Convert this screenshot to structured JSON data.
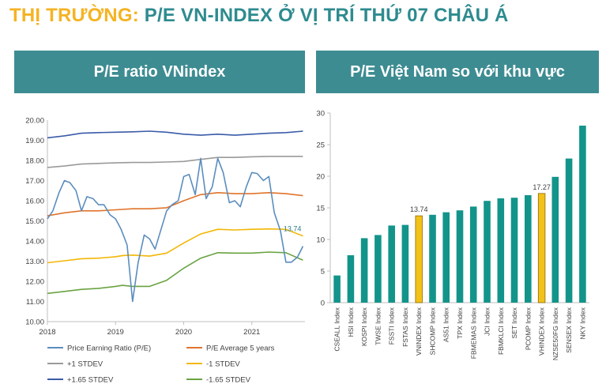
{
  "header": {
    "title_lead": "THỊ TRƯỜNG:",
    "title_rest": "P/E VN-INDEX Ở VỊ TRÍ THỨ 07 CHÂU Á"
  },
  "panels": {
    "left_title": "P/E ratio VNindex",
    "right_title": "P/E Việt Nam so với khu vực"
  },
  "chart_data": [
    {
      "type": "line",
      "title": "P/E ratio VNindex",
      "ylim": [
        10,
        20
      ],
      "xlim": [
        2018,
        2021.78
      ],
      "y_ticks": [
        "10.00",
        "11.00",
        "12.00",
        "13.00",
        "14.00",
        "15.00",
        "16.00",
        "17.00",
        "18.00",
        "19.00",
        "20.00"
      ],
      "x_ticks": [
        "2018",
        "2019",
        "2020",
        "2021"
      ],
      "grid": false,
      "legend": "bottom",
      "colors": {
        "pe": "#5B8DBE",
        "avg": "#E0742B",
        "plus1": "#9A9A9A",
        "minus1": "#F2B705",
        "plus165": "#3A5BA8",
        "minus165": "#6AA342"
      },
      "last_label": "13.74",
      "series": [
        {
          "name": "Price Earning Ratio (P/E)",
          "key": "pe",
          "x": [
            2018.0,
            2018.08,
            2018.17,
            2018.25,
            2018.33,
            2018.42,
            2018.5,
            2018.58,
            2018.67,
            2018.75,
            2018.83,
            2018.92,
            2019.0,
            2019.08,
            2019.17,
            2019.25,
            2019.33,
            2019.42,
            2019.5,
            2019.58,
            2019.67,
            2019.75,
            2019.83,
            2019.92,
            2020.0,
            2020.08,
            2020.17,
            2020.25,
            2020.33,
            2020.42,
            2020.5,
            2020.58,
            2020.67,
            2020.75,
            2020.83,
            2020.92,
            2021.0,
            2021.08,
            2021.17,
            2021.25,
            2021.33,
            2021.42,
            2021.5,
            2021.58,
            2021.67,
            2021.75
          ],
          "y": [
            15.1,
            15.5,
            16.4,
            17.0,
            16.9,
            16.5,
            15.5,
            16.2,
            16.1,
            15.8,
            15.8,
            15.3,
            15.1,
            14.6,
            13.8,
            11.0,
            12.9,
            14.3,
            14.1,
            13.6,
            14.6,
            15.5,
            15.8,
            16.0,
            17.2,
            17.3,
            16.3,
            18.1,
            16.1,
            16.7,
            18.1,
            17.4,
            15.9,
            16.0,
            15.7,
            16.7,
            17.4,
            17.35,
            17.0,
            17.2,
            15.4,
            14.5,
            12.95,
            12.95,
            13.2,
            13.74
          ]
        },
        {
          "name": "P/E Average 5 years",
          "key": "avg",
          "x": [
            2018.0,
            2018.25,
            2018.5,
            2018.75,
            2019.0,
            2019.25,
            2019.5,
            2019.75,
            2020.0,
            2020.25,
            2020.5,
            2020.75,
            2021.0,
            2021.25,
            2021.5,
            2021.75
          ],
          "y": [
            15.25,
            15.4,
            15.5,
            15.5,
            15.55,
            15.6,
            15.6,
            15.65,
            16.0,
            16.3,
            16.4,
            16.35,
            16.35,
            16.4,
            16.35,
            16.25
          ]
        },
        {
          "name": "+1 STDEV",
          "key": "plus1",
          "x": [
            2018.0,
            2018.25,
            2018.5,
            2018.75,
            2019.0,
            2019.25,
            2019.5,
            2019.75,
            2020.0,
            2020.25,
            2020.5,
            2020.75,
            2021.0,
            2021.25,
            2021.5,
            2021.75
          ],
          "y": [
            17.65,
            17.72,
            17.82,
            17.85,
            17.88,
            17.9,
            17.9,
            17.92,
            17.95,
            18.05,
            18.15,
            18.15,
            18.18,
            18.2,
            18.2,
            18.2
          ]
        },
        {
          "name": "-1 STDEV",
          "key": "minus1",
          "x": [
            2018.0,
            2018.25,
            2018.5,
            2018.75,
            2019.0,
            2019.1,
            2019.25,
            2019.5,
            2019.75,
            2020.0,
            2020.25,
            2020.5,
            2020.75,
            2021.0,
            2021.25,
            2021.5,
            2021.75
          ],
          "y": [
            12.92,
            13.02,
            13.12,
            13.15,
            13.22,
            13.28,
            13.3,
            13.25,
            13.4,
            13.9,
            14.35,
            14.58,
            14.55,
            14.58,
            14.6,
            14.58,
            14.25
          ]
        },
        {
          "name": "+1.65 STDEV",
          "key": "plus165",
          "x": [
            2018.0,
            2018.25,
            2018.5,
            2018.75,
            2019.0,
            2019.25,
            2019.5,
            2019.75,
            2020.0,
            2020.25,
            2020.5,
            2020.75,
            2021.0,
            2021.25,
            2021.5,
            2021.75
          ],
          "y": [
            19.12,
            19.22,
            19.35,
            19.38,
            19.4,
            19.42,
            19.45,
            19.4,
            19.3,
            19.25,
            19.3,
            19.25,
            19.3,
            19.35,
            19.38,
            19.45
          ]
        },
        {
          "name": "-1.65 STDEV",
          "key": "minus165",
          "x": [
            2018.0,
            2018.25,
            2018.5,
            2018.75,
            2019.0,
            2019.1,
            2019.25,
            2019.5,
            2019.75,
            2020.0,
            2020.25,
            2020.5,
            2020.75,
            2021.0,
            2021.25,
            2021.5,
            2021.75
          ],
          "y": [
            11.4,
            11.5,
            11.6,
            11.65,
            11.75,
            11.8,
            11.75,
            11.75,
            12.05,
            12.65,
            13.15,
            13.42,
            13.4,
            13.4,
            13.45,
            13.42,
            13.05
          ]
        }
      ]
    },
    {
      "type": "bar",
      "title": "P/E Việt Nam so với khu vực",
      "ylim": [
        0,
        30
      ],
      "y_ticks": [
        "0",
        "5",
        "10",
        "15",
        "20",
        "25",
        "30"
      ],
      "grid": false,
      "colors": {
        "bar": "#13948A",
        "highlight": "#F2C21B",
        "highlight_stroke": "#8C6B00"
      },
      "categories": [
        "CSEALL Index",
        "HSI Index",
        "KOSPI Index",
        "TWSE Index",
        "FSSTI Index",
        "FSTAS Index",
        "VNINDEX Index",
        "SHCOMP Index",
        "AS51 Index",
        "TPX Index",
        "FBMEMAS Index",
        "JCI Index",
        "FBMKLCI Index",
        "SET Index",
        "PCOMP Index",
        "VHINDEX Index",
        "NZSE50FG Index",
        "SENSEX Index",
        "NKY Index"
      ],
      "values": [
        4.3,
        7.5,
        10.2,
        10.7,
        12.2,
        12.3,
        13.74,
        13.9,
        14.3,
        14.6,
        15.2,
        16.1,
        16.5,
        16.6,
        17.0,
        17.27,
        19.9,
        22.8,
        28.0
      ],
      "highlighted": [
        6,
        15
      ],
      "data_labels": {
        "6": "13.74",
        "15": "17.27"
      }
    }
  ]
}
